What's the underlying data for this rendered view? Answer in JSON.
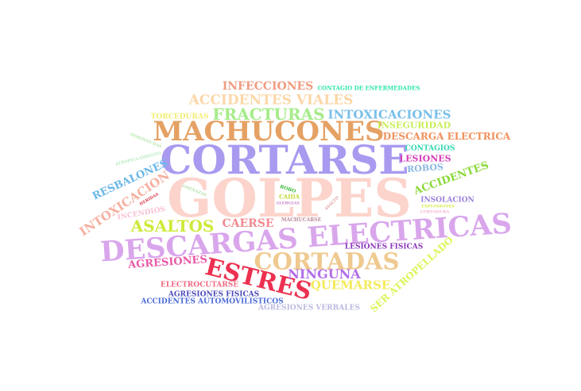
{
  "words": [
    {
      "text": "GOLPES",
      "color": "#fcd4cc"
    },
    {
      "text": "CORTARSE",
      "color": "#a99af0"
    },
    {
      "text": "DESCARGAS ELECTRICAS",
      "color": "#d9a6ec"
    },
    {
      "text": "MACHUCONES",
      "color": "#e5a163"
    },
    {
      "text": "CORTADAS",
      "color": "#efc98f"
    },
    {
      "text": "ESTRES",
      "color": "#ec3050"
    },
    {
      "text": "FRACTURAS",
      "color": "#a6ec8a"
    },
    {
      "text": "INTOXICACIONES",
      "color": "#79bfe8"
    },
    {
      "text": "ACCIDENTES VIALES",
      "color": "#fcd7a8"
    },
    {
      "text": "INFECCIONES",
      "color": "#ef9c80"
    },
    {
      "text": "CONTAGIO DE ENFERMEDADES",
      "color": "#2fe8a8"
    },
    {
      "text": "TORCEDURAS",
      "color": "#f2ec72"
    },
    {
      "text": "INSEGURIDAD",
      "color": "#c8ee5a"
    },
    {
      "text": "DESCARGA ELECTRICA",
      "color": "#f0915a"
    },
    {
      "text": "CONTAGIOS",
      "color": "#2fd7b2"
    },
    {
      "text": "LESIONES",
      "color": "#d63ab8"
    },
    {
      "text": "ROBOS",
      "color": "#8ab8e0"
    },
    {
      "text": "ACCIDENTES",
      "color": "#8ad838"
    },
    {
      "text": "INSOLACION",
      "color": "#9a7fd8"
    },
    {
      "text": "EXPLOSIONES",
      "color": "#d8e84a"
    },
    {
      "text": "CORTADURA",
      "color": "#f0b2d0"
    },
    {
      "text": "RESBALONES",
      "color": "#6bb8e8"
    },
    {
      "text": "INTOXICACION",
      "color": "#f5b0a0"
    },
    {
      "text": "HERIDAS",
      "color": "#d83a4a"
    },
    {
      "text": "INCENDIOS",
      "color": "#f7c2d4"
    },
    {
      "text": "ASALTOS",
      "color": "#cdea3a"
    },
    {
      "text": "CAERSE",
      "color": "#f08a90"
    },
    {
      "text": "AGRESIONES",
      "color": "#e85aa8"
    },
    {
      "text": "NINGUNA",
      "color": "#b26ee8"
    },
    {
      "text": "QUEMARSE",
      "color": "#f3ea5a"
    },
    {
      "text": "SER ATROPELLADO",
      "color": "#dcf55a"
    },
    {
      "text": "LESIONES FISICAS",
      "color": "#8a38b8"
    },
    {
      "text": "ELECTROCUTARSE",
      "color": "#ee6a82"
    },
    {
      "text": "AGRESIONES FISICAS",
      "color": "#4a4ab8"
    },
    {
      "text": "ACCIDENTES AUTOMOVILISTICOS",
      "color": "#4a6ad8"
    },
    {
      "text": "AGRESIONES VERBALES",
      "color": "#bab8e0"
    },
    {
      "text": "ROBO",
      "color": "#3ab838"
    },
    {
      "text": "CAIDA",
      "color": "#c0d838"
    },
    {
      "text": "ALERGIAS",
      "color": "#c884c8"
    },
    {
      "text": "MACHUCARSE",
      "color": "#b88a9a"
    },
    {
      "text": "ASALTO",
      "color": "#e0a0a0"
    },
    {
      "text": "AMENAZAS",
      "color": "#b8e0a8"
    },
    {
      "text": "MORDEDURAS",
      "color": "#b8e8b0"
    },
    {
      "text": "ATROPELLAMIENTO",
      "color": "#b8ecc0"
    }
  ]
}
